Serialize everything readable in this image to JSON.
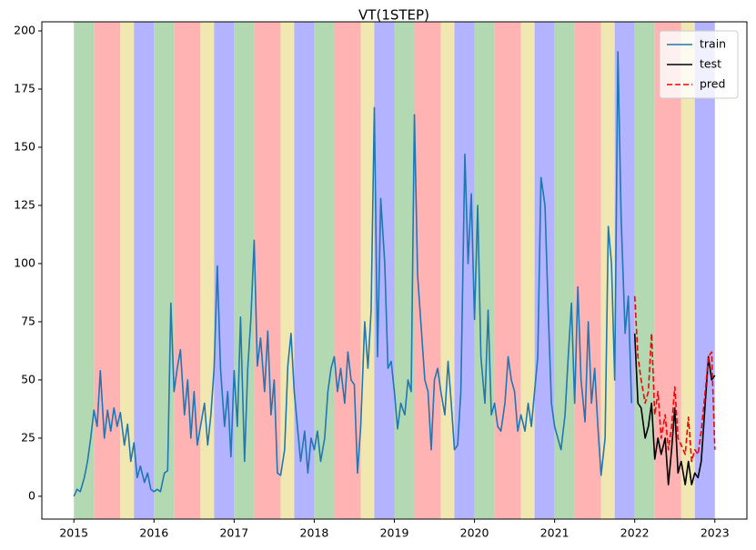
{
  "chart_data": {
    "type": "line",
    "title": "VT(1STEP)",
    "xlim": [
      2014.6,
      2023.4
    ],
    "ylim": [
      -9.8,
      203.9
    ],
    "xticks": [
      2015,
      2016,
      2017,
      2018,
      2019,
      2020,
      2021,
      2022,
      2023
    ],
    "yticks": [
      0,
      25,
      50,
      75,
      100,
      125,
      150,
      175,
      200
    ],
    "legend": "upper right",
    "bands": [
      {
        "start": 2015,
        "end": 2015.25,
        "color": "#b3d9b3"
      },
      {
        "start": 2015.25,
        "end": 2015.58,
        "color": "#ffb3b3"
      },
      {
        "start": 2015.58,
        "end": 2015.75,
        "color": "#f0e8b0"
      },
      {
        "start": 2015.75,
        "end": 2016,
        "color": "#b3b3ff"
      },
      {
        "start": 2016,
        "end": 2016.25,
        "color": "#b3d9b3"
      },
      {
        "start": 2016.25,
        "end": 2016.58,
        "color": "#ffb3b3"
      },
      {
        "start": 2016.58,
        "end": 2016.75,
        "color": "#f0e8b0"
      },
      {
        "start": 2016.75,
        "end": 2017,
        "color": "#b3b3ff"
      },
      {
        "start": 2017,
        "end": 2017.25,
        "color": "#b3d9b3"
      },
      {
        "start": 2017.25,
        "end": 2017.58,
        "color": "#ffb3b3"
      },
      {
        "start": 2017.58,
        "end": 2017.75,
        "color": "#f0e8b0"
      },
      {
        "start": 2017.75,
        "end": 2018,
        "color": "#b3b3ff"
      },
      {
        "start": 2018,
        "end": 2018.25,
        "color": "#b3d9b3"
      },
      {
        "start": 2018.25,
        "end": 2018.58,
        "color": "#ffb3b3"
      },
      {
        "start": 2018.58,
        "end": 2018.75,
        "color": "#f0e8b0"
      },
      {
        "start": 2018.75,
        "end": 2019,
        "color": "#b3b3ff"
      },
      {
        "start": 2019,
        "end": 2019.25,
        "color": "#b3d9b3"
      },
      {
        "start": 2019.25,
        "end": 2019.58,
        "color": "#ffb3b3"
      },
      {
        "start": 2019.58,
        "end": 2019.75,
        "color": "#f0e8b0"
      },
      {
        "start": 2019.75,
        "end": 2020,
        "color": "#b3b3ff"
      },
      {
        "start": 2020,
        "end": 2020.25,
        "color": "#b3d9b3"
      },
      {
        "start": 2020.25,
        "end": 2020.58,
        "color": "#ffb3b3"
      },
      {
        "start": 2020.58,
        "end": 2020.75,
        "color": "#f0e8b0"
      },
      {
        "start": 2020.75,
        "end": 2021,
        "color": "#b3b3ff"
      },
      {
        "start": 2021,
        "end": 2021.25,
        "color": "#b3d9b3"
      },
      {
        "start": 2021.25,
        "end": 2021.58,
        "color": "#ffb3b3"
      },
      {
        "start": 2021.58,
        "end": 2021.75,
        "color": "#f0e8b0"
      },
      {
        "start": 2021.75,
        "end": 2022,
        "color": "#b3b3ff"
      },
      {
        "start": 2022,
        "end": 2022.25,
        "color": "#b3d9b3"
      },
      {
        "start": 2022.25,
        "end": 2022.58,
        "color": "#ffb3b3"
      },
      {
        "start": 2022.58,
        "end": 2022.75,
        "color": "#f0e8b0"
      },
      {
        "start": 2022.75,
        "end": 2023,
        "color": "#b3b3ff"
      }
    ],
    "series": [
      {
        "name": "train",
        "color": "#1f77b4",
        "dash": "none",
        "x": [
          2015,
          2015.04,
          2015.08,
          2015.13,
          2015.17,
          2015.21,
          2015.25,
          2015.29,
          2015.33,
          2015.38,
          2015.42,
          2015.46,
          2015.5,
          2015.54,
          2015.58,
          2015.63,
          2015.67,
          2015.71,
          2015.75,
          2015.79,
          2015.83,
          2015.88,
          2015.92,
          2015.96,
          2016,
          2016.04,
          2016.08,
          2016.13,
          2016.17,
          2016.21,
          2016.25,
          2016.29,
          2016.33,
          2016.38,
          2016.42,
          2016.46,
          2016.5,
          2016.54,
          2016.58,
          2016.63,
          2016.67,
          2016.71,
          2016.75,
          2016.79,
          2016.83,
          2016.88,
          2016.92,
          2016.96,
          2017,
          2017.04,
          2017.08,
          2017.13,
          2017.17,
          2017.21,
          2017.25,
          2017.29,
          2017.33,
          2017.38,
          2017.42,
          2017.46,
          2017.5,
          2017.54,
          2017.58,
          2017.63,
          2017.67,
          2017.71,
          2017.75,
          2017.79,
          2017.83,
          2017.88,
          2017.92,
          2017.96,
          2018,
          2018.04,
          2018.08,
          2018.13,
          2018.17,
          2018.21,
          2018.25,
          2018.29,
          2018.33,
          2018.38,
          2018.42,
          2018.46,
          2018.5,
          2018.54,
          2018.58,
          2018.63,
          2018.67,
          2018.71,
          2018.75,
          2018.79,
          2018.83,
          2018.88,
          2018.92,
          2018.96,
          2019,
          2019.04,
          2019.08,
          2019.13,
          2019.17,
          2019.21,
          2019.25,
          2019.29,
          2019.33,
          2019.38,
          2019.42,
          2019.46,
          2019.5,
          2019.54,
          2019.58,
          2019.63,
          2019.67,
          2019.71,
          2019.75,
          2019.79,
          2019.83,
          2019.88,
          2019.92,
          2019.96,
          2020,
          2020.04,
          2020.08,
          2020.13,
          2020.17,
          2020.21,
          2020.25,
          2020.29,
          2020.33,
          2020.38,
          2020.42,
          2020.46,
          2020.5,
          2020.54,
          2020.58,
          2020.63,
          2020.67,
          2020.71,
          2020.75,
          2020.79,
          2020.83,
          2020.88,
          2020.92,
          2020.96,
          2021,
          2021.04,
          2021.08,
          2021.13,
          2021.17,
          2021.21,
          2021.25,
          2021.29,
          2021.33,
          2021.38,
          2021.42,
          2021.46,
          2021.5,
          2021.54,
          2021.58,
          2021.63,
          2021.67,
          2021.71,
          2021.75,
          2021.79,
          2021.83,
          2021.88,
          2021.92,
          2021.96
        ],
        "values": [
          0,
          3,
          2,
          8,
          15,
          25,
          37,
          30,
          54,
          25,
          37,
          28,
          38,
          30,
          36,
          22,
          31,
          15,
          23,
          8,
          13,
          6,
          10,
          3,
          2,
          3,
          2,
          10,
          11,
          83,
          45,
          55,
          63,
          35,
          50,
          25,
          45,
          22,
          30,
          40,
          22,
          35,
          55,
          99,
          55,
          30,
          45,
          17,
          54,
          30,
          77,
          15,
          55,
          77,
          110,
          56,
          68,
          45,
          71,
          35,
          50,
          10,
          9,
          20,
          56,
          70,
          45,
          30,
          15,
          28,
          10,
          25,
          20,
          28,
          15,
          25,
          45,
          55,
          60,
          45,
          55,
          40,
          62,
          50,
          48,
          10,
          30,
          75,
          55,
          80,
          167,
          60,
          128,
          100,
          55,
          58,
          45,
          29,
          40,
          35,
          50,
          45,
          164,
          95,
          75,
          50,
          45,
          20,
          50,
          55,
          45,
          35,
          58,
          40,
          20,
          22,
          45,
          147,
          100,
          130,
          76,
          125,
          60,
          40,
          80,
          35,
          40,
          30,
          28,
          40,
          60,
          50,
          45,
          28,
          35,
          28,
          40,
          30,
          45,
          60,
          137,
          125,
          80,
          40,
          30,
          25,
          20,
          35,
          60,
          83,
          40,
          90,
          50,
          32,
          75,
          40,
          55,
          30,
          9,
          25,
          116,
          100,
          50,
          191,
          120,
          70,
          86,
          40
        ]
      },
      {
        "name": "test",
        "color": "#000000",
        "dash": "none",
        "x": [
          2022,
          2022.04,
          2022.08,
          2022.13,
          2022.17,
          2022.21,
          2022.25,
          2022.29,
          2022.33,
          2022.38,
          2022.42,
          2022.46,
          2022.5,
          2022.54,
          2022.58,
          2022.63,
          2022.67,
          2022.71,
          2022.75,
          2022.79,
          2022.83,
          2022.88,
          2022.92,
          2022.96,
          2023
        ],
        "values": [
          70,
          40,
          38,
          25,
          30,
          40,
          16,
          25,
          18,
          25,
          5,
          20,
          38,
          10,
          15,
          5,
          15,
          5,
          10,
          8,
          15,
          40,
          60,
          50,
          52
        ]
      },
      {
        "name": "pred",
        "color": "#ff0000",
        "dash": "6,3",
        "x": [
          2022,
          2022.04,
          2022.08,
          2022.13,
          2022.17,
          2022.21,
          2022.25,
          2022.29,
          2022.33,
          2022.38,
          2022.42,
          2022.46,
          2022.5,
          2022.54,
          2022.58,
          2022.63,
          2022.67,
          2022.71,
          2022.75,
          2022.79,
          2022.83,
          2022.88,
          2022.92,
          2022.96,
          2023
        ],
        "values": [
          86,
          60,
          50,
          40,
          45,
          70,
          35,
          45,
          25,
          35,
          20,
          30,
          47,
          25,
          22,
          18,
          34,
          15,
          20,
          18,
          28,
          45,
          60,
          62,
          20
        ]
      }
    ]
  }
}
